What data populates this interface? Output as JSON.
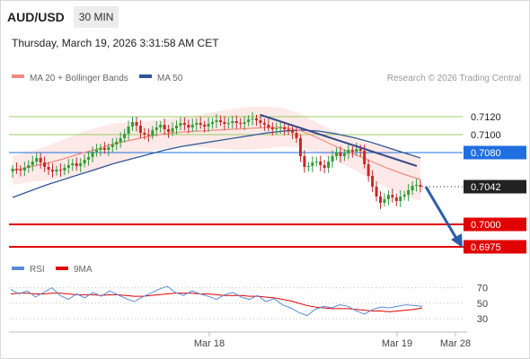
{
  "header": {
    "symbol": "AUD/USD",
    "timeframe": "30 MIN",
    "timestamp": "Thursday, March 19, 2026 3:31:58 AM CET"
  },
  "legend": {
    "ma20": "MA 20 + Bollinger Bands",
    "ma50": "MA 50",
    "copyright": "Research © 2026 Trading Central",
    "rsi": "RSI",
    "ma9": "9MA"
  },
  "colors": {
    "ma20": "#f28b82",
    "ma50": "#2e5597",
    "bollinger_fill": "#fde3e1",
    "bull": "#2e9e38",
    "bear": "#c62828",
    "support": "#e00000",
    "current": "#222222",
    "resistance_blue": "#1f6fe0",
    "resistance_green": "#9ccc65",
    "rsi": "#5b8bd9",
    "ma9": "#e00000"
  },
  "chart_data": [
    {
      "type": "candlestick",
      "y_range": [
        0.696,
        0.714
      ],
      "price_levels": [
        {
          "label": "0.7120",
          "value": 0.712,
          "kind": "resistance-minor"
        },
        {
          "label": "0.7100",
          "value": 0.71,
          "kind": "resistance-minor"
        },
        {
          "label": "0.7080",
          "value": 0.708,
          "kind": "resistance"
        },
        {
          "label": "0.7042",
          "value": 0.7042,
          "kind": "current"
        },
        {
          "label": "0.7000",
          "value": 0.7,
          "kind": "support"
        },
        {
          "label": "0.6975",
          "value": 0.6975,
          "kind": "support"
        }
      ],
      "x_labels": [
        "Mar 18",
        "Mar 19",
        "Mar 28"
      ],
      "series": [
        {
          "name": "MA 20 + Bollinger Bands",
          "values": [
            0.706,
            0.7064,
            0.7068,
            0.7073,
            0.7079,
            0.7084,
            0.709,
            0.7094,
            0.7098,
            0.7101,
            0.7103,
            0.7104,
            0.7105,
            0.7106,
            0.7107,
            0.7108,
            0.7108,
            0.7104,
            0.7096,
            0.7087,
            0.7079,
            0.7071,
            0.7063,
            0.7056,
            0.705
          ]
        },
        {
          "name": "MA 50",
          "values": [
            0.703,
            0.7037,
            0.7044,
            0.705,
            0.7056,
            0.7062,
            0.7068,
            0.7073,
            0.7078,
            0.7083,
            0.7087,
            0.709,
            0.7093,
            0.7096,
            0.7099,
            0.7102,
            0.7104,
            0.7105,
            0.7104,
            0.7101,
            0.7097,
            0.7092,
            0.7086,
            0.708,
            0.7074
          ]
        }
      ],
      "closes": [
        0.7062,
        0.7061,
        0.706,
        0.7063,
        0.7066,
        0.707,
        0.7074,
        0.7069,
        0.7064,
        0.7061,
        0.7059,
        0.7061,
        0.706,
        0.7063,
        0.7066,
        0.7068,
        0.7065,
        0.7068,
        0.7072,
        0.7075,
        0.7081,
        0.7083,
        0.7085,
        0.7083,
        0.7086,
        0.7089,
        0.7092,
        0.7096,
        0.7101,
        0.7109,
        0.7114,
        0.711,
        0.7102,
        0.71,
        0.7099,
        0.7105,
        0.7108,
        0.7111,
        0.7106,
        0.7103,
        0.7107,
        0.711,
        0.7113,
        0.7111,
        0.7108,
        0.7111,
        0.7113,
        0.7111,
        0.7109,
        0.7112,
        0.7114,
        0.7116,
        0.7114,
        0.7112,
        0.7113,
        0.7115,
        0.7113,
        0.7112,
        0.7114,
        0.7117,
        0.7118,
        0.7116,
        0.7113,
        0.7111,
        0.7108,
        0.7106,
        0.7107,
        0.7108,
        0.7106,
        0.7104,
        0.7102,
        0.7096,
        0.7076,
        0.7064,
        0.7065,
        0.7069,
        0.707,
        0.7066,
        0.7063,
        0.707,
        0.7076,
        0.708,
        0.7076,
        0.7079,
        0.7083,
        0.7081,
        0.7084,
        0.7082,
        0.7067,
        0.7054,
        0.7042,
        0.7031,
        0.7024,
        0.7028,
        0.7033,
        0.703,
        0.7026,
        0.7031,
        0.7033,
        0.7038,
        0.7043,
        0.7044,
        0.7042
      ]
    },
    {
      "type": "line",
      "title": "RSI",
      "y_ticks": [
        70,
        50,
        30
      ],
      "series": [
        {
          "name": "RSI",
          "values": [
            68,
            62,
            66,
            58,
            64,
            70,
            60,
            55,
            62,
            57,
            64,
            59,
            66,
            61,
            56,
            52,
            58,
            63,
            68,
            72,
            64,
            60,
            66,
            62,
            59,
            55,
            61,
            64,
            58,
            55,
            60,
            52,
            56,
            48,
            44,
            38,
            34,
            42,
            46,
            44,
            48,
            46,
            40,
            36,
            42,
            45,
            44,
            46,
            48,
            47,
            46
          ]
        },
        {
          "name": "9MA",
          "values": [
            62,
            63,
            63,
            62,
            62,
            63,
            63,
            62,
            61,
            61,
            61,
            60,
            61,
            61,
            60,
            59,
            59,
            60,
            61,
            62,
            63,
            63,
            63,
            62,
            62,
            61,
            60,
            60,
            60,
            59,
            59,
            58,
            57,
            55,
            53,
            50,
            47,
            45,
            44,
            43,
            43,
            43,
            42,
            41,
            40,
            40,
            39,
            40,
            41,
            42,
            44
          ]
        }
      ]
    }
  ]
}
